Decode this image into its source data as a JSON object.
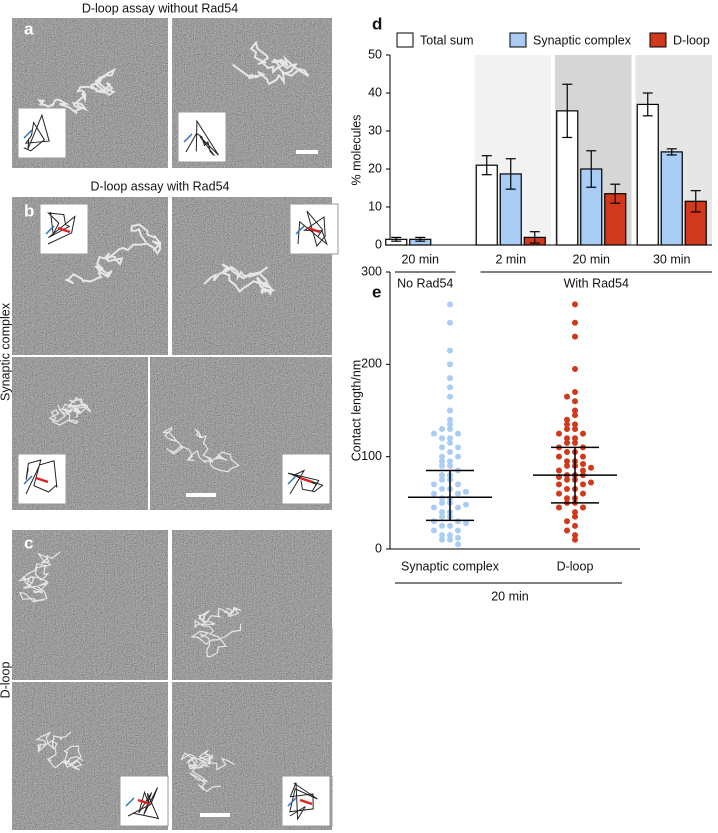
{
  "figure": {
    "panel_labels": [
      "a",
      "b",
      "c"
    ],
    "titles": [
      "D-loop assay without Rad54",
      "D-loop assay with Rad54"
    ],
    "side_labels": [
      "Synaptic complex",
      "D-loop"
    ]
  },
  "chart_data": [
    {
      "type": "bar",
      "panel": "d",
      "ylabel": "% molecules",
      "categories": [
        "20 min",
        "2 min",
        "20 min",
        "30 min"
      ],
      "group_labels": [
        "No Rad54",
        "With Rad54"
      ],
      "background_colors": [
        "#ffffff",
        "#f2f2f2",
        "#d6d6d6",
        "#e6e6e6"
      ],
      "series": [
        {
          "name": "Total sum",
          "color": "#ffffff",
          "values": [
            1.5,
            21,
            35.3,
            37
          ],
          "errors": [
            0.5,
            2.5,
            7,
            3
          ]
        },
        {
          "name": "Synaptic complex",
          "color": "#a9cdf5",
          "values": [
            1.5,
            18.7,
            20,
            24.5
          ],
          "errors": [
            0.5,
            4,
            4.8,
            0.8
          ]
        },
        {
          "name": "D-loop",
          "color": "#d0391b",
          "values": [
            null,
            2,
            13.5,
            11.5
          ],
          "errors": [
            null,
            1.5,
            2.5,
            2.8
          ]
        }
      ],
      "ylim": [
        0,
        50
      ],
      "yticks": [
        0,
        10,
        20,
        30,
        40,
        50
      ]
    },
    {
      "type": "strip",
      "panel": "e",
      "ylabel": "Contact length/nm",
      "categories": [
        "Synaptic complex",
        "D-loop"
      ],
      "group_label": "20 min",
      "series": [
        {
          "color": "#a9cdf5",
          "values": [
            265,
            245,
            215,
            200,
            185,
            175,
            165,
            150,
            140,
            135,
            130,
            130,
            125,
            125,
            120,
            120,
            115,
            110,
            110,
            105,
            100,
            100,
            95,
            95,
            90,
            90,
            85,
            80,
            80,
            75,
            75,
            70,
            70,
            65,
            65,
            60,
            60,
            55,
            55,
            50,
            50,
            45,
            45,
            40,
            40,
            35,
            35,
            30,
            30,
            25,
            25,
            20,
            20,
            15,
            15,
            10,
            10,
            5,
            12,
            28,
            48,
            62
          ]
        },
        {
          "color": "#d0391b",
          "values": [
            265,
            245,
            230,
            195,
            170,
            165,
            160,
            150,
            145,
            140,
            135,
            135,
            130,
            130,
            125,
            125,
            120,
            120,
            115,
            115,
            110,
            110,
            105,
            105,
            100,
            100,
            95,
            95,
            90,
            90,
            85,
            85,
            80,
            80,
            80,
            75,
            75,
            70,
            70,
            65,
            65,
            60,
            60,
            55,
            55,
            50,
            50,
            45,
            45,
            40,
            35,
            30,
            25,
            20,
            15,
            10,
            88,
            92,
            78,
            72
          ]
        }
      ],
      "summary": [
        {
          "mean": 56,
          "lower": 31,
          "upper": 85
        },
        {
          "mean": 80,
          "lower": 50,
          "upper": 110
        }
      ],
      "ylim": [
        0,
        300
      ],
      "yticks": [
        0,
        100,
        200,
        300
      ]
    }
  ]
}
